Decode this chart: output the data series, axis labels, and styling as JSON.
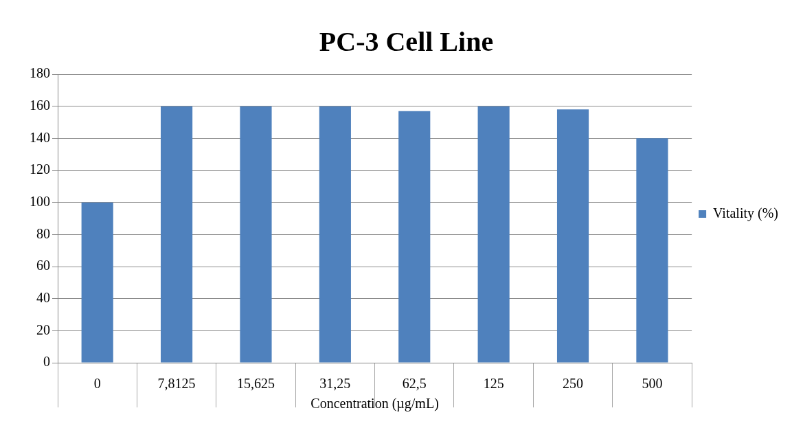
{
  "chart_data": {
    "type": "bar",
    "title": "PC-3 Cell Line",
    "xlabel": "Concentration (µg/mL)",
    "categories": [
      "0",
      "7,8125",
      "15,625",
      "31,25",
      "62,5",
      "125",
      "250",
      "500"
    ],
    "series": [
      {
        "name": "Vitality (%)",
        "color": "#4f81bd",
        "values": [
          100,
          160,
          160,
          160,
          157,
          160,
          158,
          140
        ]
      }
    ],
    "ylim": [
      0,
      180
    ],
    "yticks": [
      0,
      20,
      40,
      60,
      80,
      100,
      120,
      140,
      160,
      180
    ],
    "grid": "y",
    "legend": "right"
  }
}
